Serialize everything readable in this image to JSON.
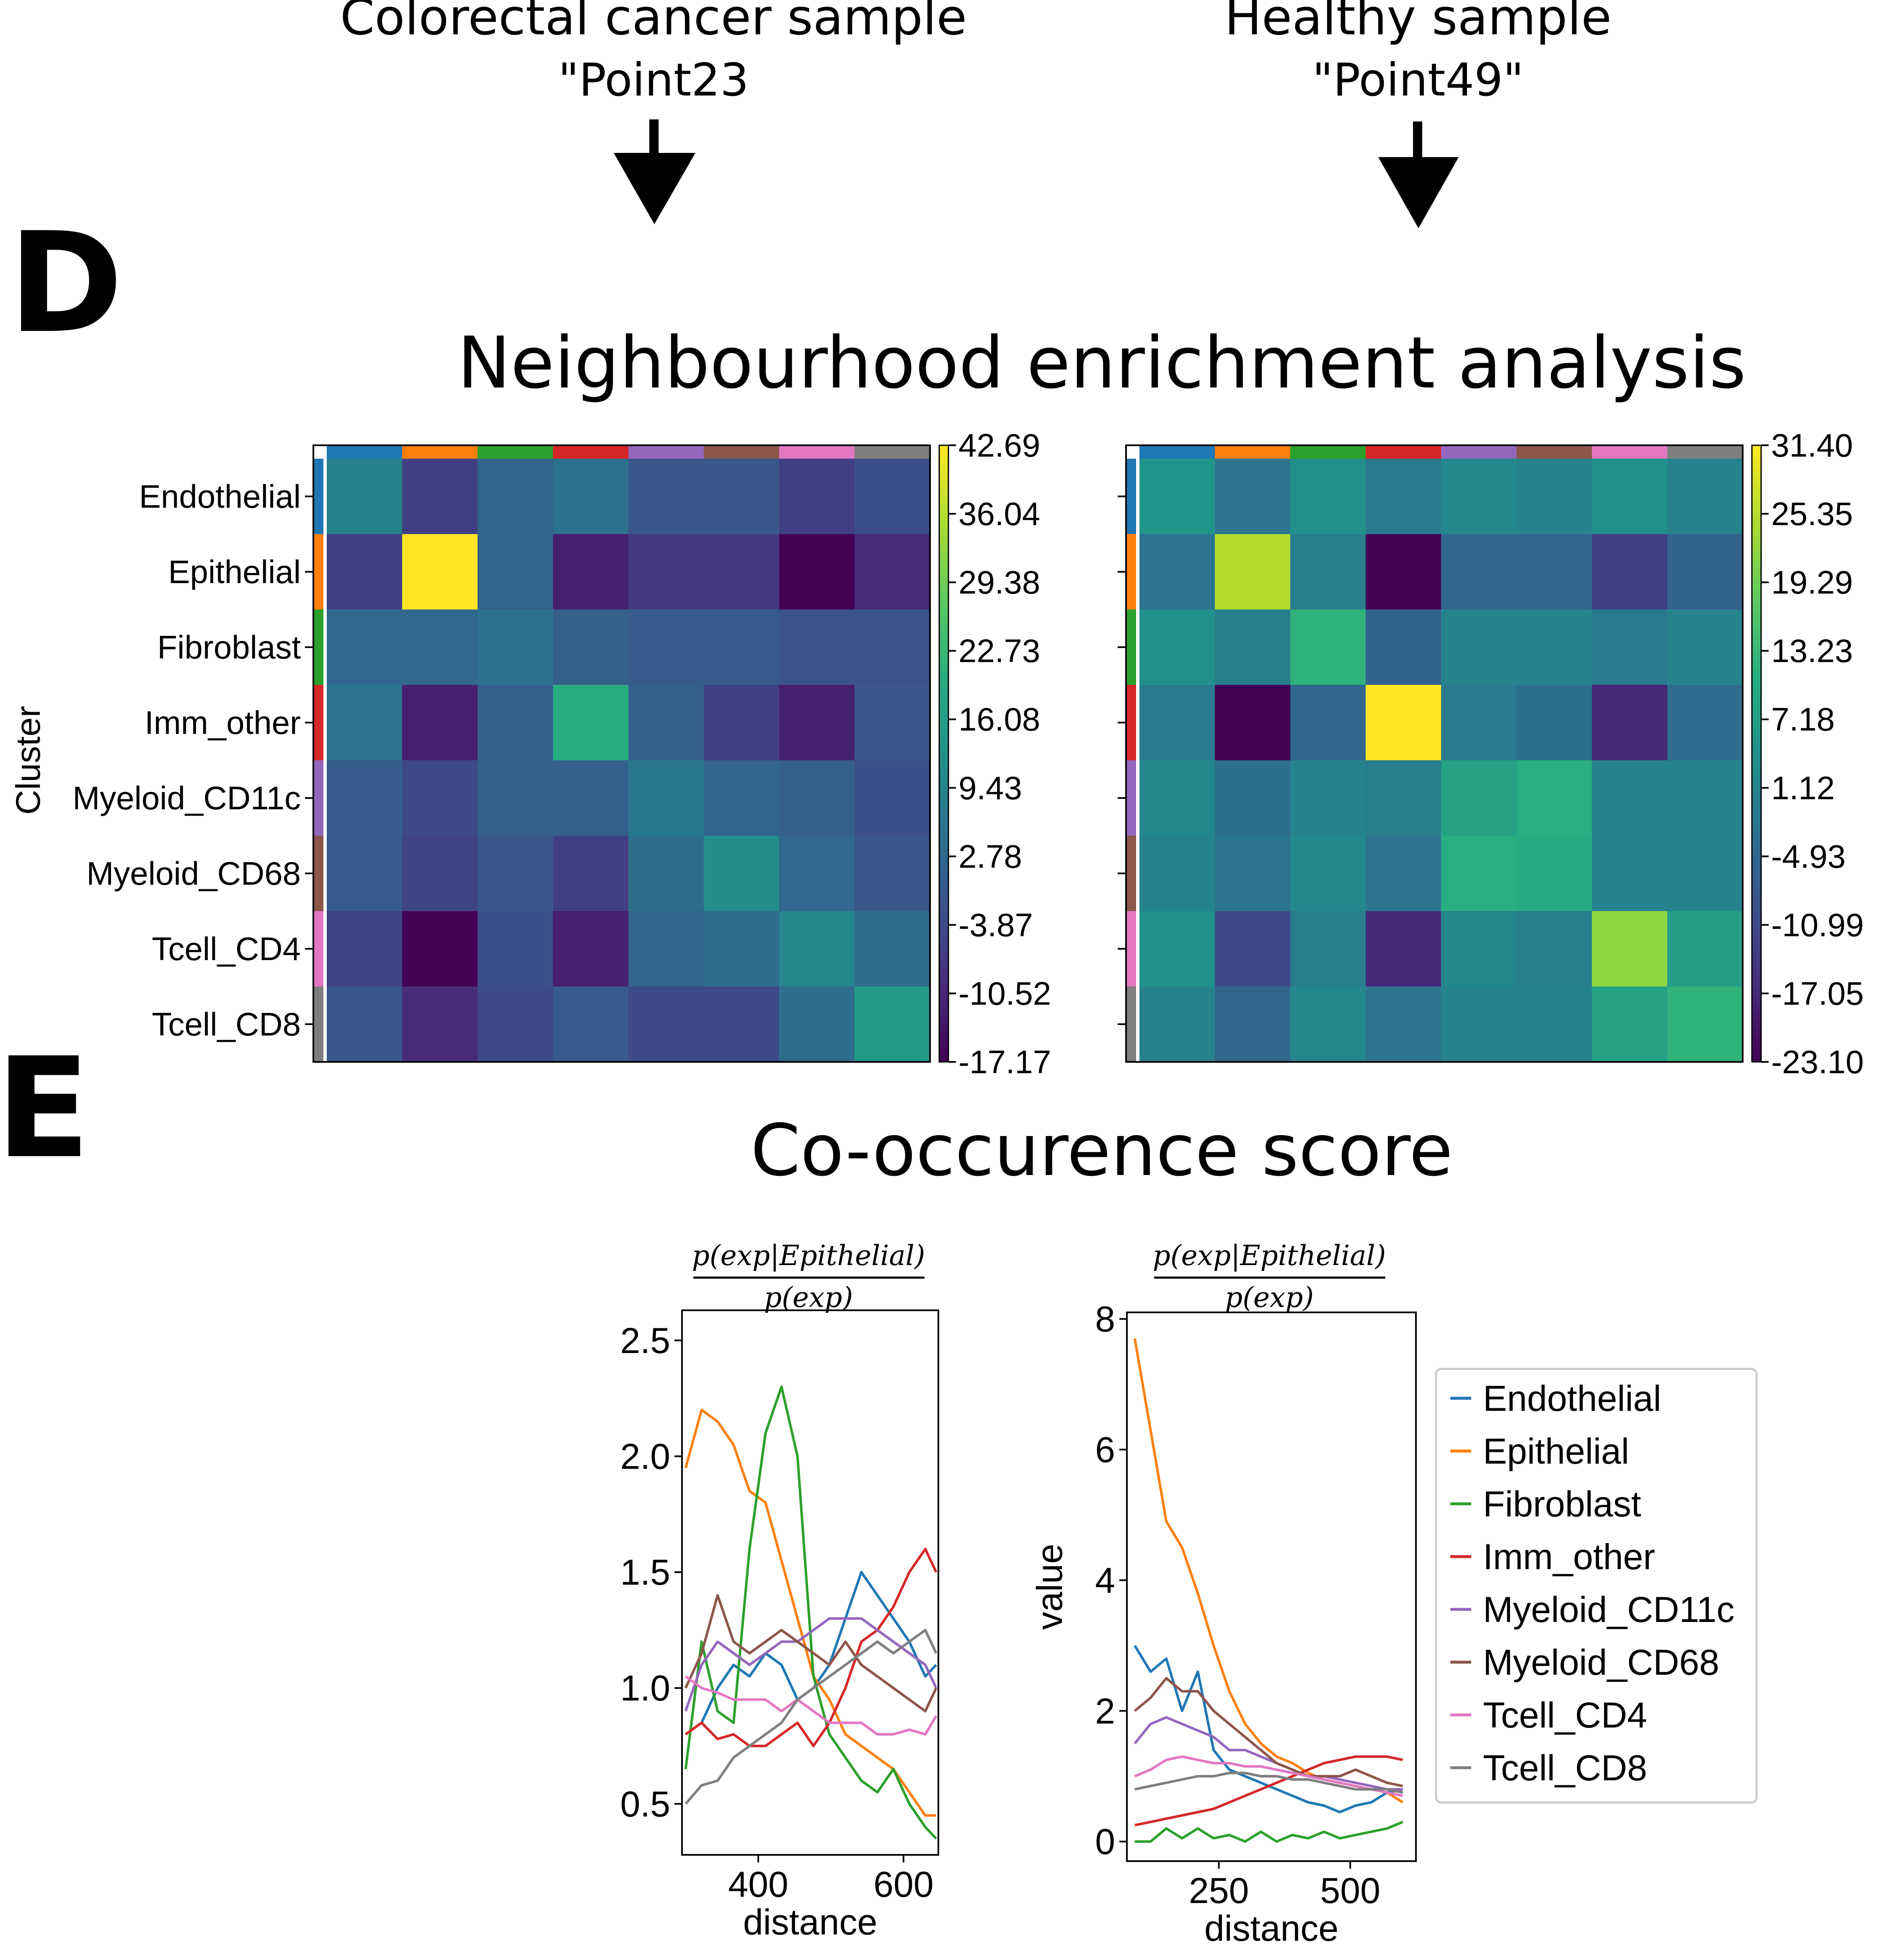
{
  "header": {
    "left_title": "Colorectal cancer sample",
    "left_subtitle": "\"Point23",
    "right_title": "Healthy sample",
    "right_subtitle": "\"Point49\""
  },
  "panel_d": {
    "letter": "D",
    "title": "Neighbourhood enrichment analysis",
    "ylabel": "Cluster"
  },
  "panel_e": {
    "letter": "E",
    "title": "Co-occurence score",
    "formula_numerator": "p(exp|Epithelial)",
    "formula_denominator": "p(exp)"
  },
  "cluster_colors": [
    "#1f77b4",
    "#ff7f0e",
    "#2ca02c",
    "#d62728",
    "#9467bd",
    "#8c564b",
    "#e377c2",
    "#7f7f7f"
  ],
  "chart_data": [
    {
      "type": "heatmap",
      "categories": [
        "Endothelial",
        "Epithelial",
        "Fibroblast",
        "Imm_other",
        "Myeloid_CD11c",
        "Myeloid_CD68",
        "Tcell_CD4",
        "Tcell_CD8"
      ],
      "ylabel": "Cluster",
      "colormap": "viridis",
      "colorbar_range": [
        -17.17,
        42.69
      ],
      "colorbar_ticks": [
        "42.69",
        "36.04",
        "29.38",
        "22.73",
        "16.08",
        "9.43",
        "2.78",
        "-3.87",
        "-10.52",
        "-17.17"
      ],
      "values": [
        [
          9,
          -6,
          2,
          5,
          -1,
          -1,
          -6,
          -3
        ],
        [
          -6,
          42.7,
          2,
          -12,
          -7,
          -7,
          -17,
          -10
        ],
        [
          3,
          3,
          5,
          1,
          0,
          0,
          -2,
          -2
        ],
        [
          6,
          -12,
          1,
          20,
          1,
          -6,
          -12,
          -1
        ],
        [
          0,
          -4,
          1,
          1,
          7,
          2,
          1,
          -3
        ],
        [
          0,
          -5,
          -1,
          -6,
          4,
          12,
          3,
          -1
        ],
        [
          -5,
          -17,
          -3,
          -12,
          2,
          4,
          10,
          4
        ],
        [
          -1,
          -10,
          -4,
          0,
          -4,
          -4,
          4,
          15
        ]
      ]
    },
    {
      "type": "heatmap",
      "categories": [
        "Endothelial",
        "Epithelial",
        "Fibroblast",
        "Imm_other",
        "Myeloid_CD11c",
        "Myeloid_CD68",
        "Tcell_CD4",
        "Tcell_CD8"
      ],
      "colormap": "viridis",
      "colorbar_range": [
        -23.1,
        31.4
      ],
      "colorbar_ticks": [
        "31.40",
        "25.35",
        "19.29",
        "13.23",
        "7.18",
        "1.12",
        "-4.93",
        "-10.99",
        "-17.05",
        "-23.10"
      ],
      "values": [
        [
          5,
          -2,
          4,
          -1,
          2,
          1,
          4,
          1
        ],
        [
          -2,
          25,
          0,
          -23,
          -5,
          -5,
          -13,
          -6
        ],
        [
          4,
          0,
          12,
          -6,
          1,
          1,
          -1,
          1
        ],
        [
          -1,
          -23,
          -5,
          31.4,
          -1,
          -3,
          -17,
          -4
        ],
        [
          2,
          -3,
          1,
          0,
          8,
          11,
          1,
          1
        ],
        [
          1,
          -2,
          2,
          -2,
          11,
          10,
          1,
          1
        ],
        [
          4,
          -11,
          0,
          -17,
          2,
          0,
          22,
          7
        ],
        [
          1,
          -5,
          2,
          -2,
          1,
          1,
          8,
          12
        ]
      ]
    },
    {
      "type": "line",
      "xlabel": "distance",
      "ylabel": "",
      "xlim": [
        295,
        648
      ],
      "ylim": [
        0.28,
        2.63
      ],
      "xticks": [
        400,
        600
      ],
      "yticks": [
        0.5,
        1.0,
        1.5,
        2.0,
        2.5
      ],
      "x": [
        300,
        322,
        344,
        366,
        388,
        410,
        432,
        454,
        476,
        498,
        520,
        542,
        564,
        586,
        608,
        630,
        645
      ],
      "series": [
        {
          "name": "Endothelial",
          "values": [
            0.8,
            0.85,
            1.0,
            1.1,
            1.05,
            1.15,
            1.1,
            0.95,
            1.0,
            1.1,
            1.3,
            1.5,
            1.4,
            1.3,
            1.2,
            1.05,
            1.1
          ]
        },
        {
          "name": "Epithelial",
          "values": [
            1.95,
            2.2,
            2.15,
            2.05,
            1.85,
            1.8,
            1.55,
            1.3,
            1.05,
            0.95,
            0.8,
            0.75,
            0.7,
            0.65,
            0.55,
            0.45,
            0.45
          ]
        },
        {
          "name": "Fibroblast",
          "values": [
            0.65,
            1.2,
            0.9,
            0.85,
            1.6,
            2.1,
            2.3,
            2.0,
            1.05,
            0.8,
            0.7,
            0.6,
            0.55,
            0.65,
            0.5,
            0.4,
            0.35
          ]
        },
        {
          "name": "Imm_other",
          "values": [
            0.8,
            0.85,
            0.78,
            0.8,
            0.75,
            0.75,
            0.8,
            0.85,
            0.75,
            0.85,
            1.0,
            1.2,
            1.25,
            1.35,
            1.5,
            1.6,
            1.5
          ]
        },
        {
          "name": "Myeloid_CD11c",
          "values": [
            0.9,
            1.1,
            1.2,
            1.15,
            1.1,
            1.15,
            1.2,
            1.2,
            1.25,
            1.3,
            1.3,
            1.3,
            1.25,
            1.2,
            1.15,
            1.1,
            1.0
          ]
        },
        {
          "name": "Myeloid_CD68",
          "values": [
            1.0,
            1.15,
            1.4,
            1.2,
            1.15,
            1.2,
            1.25,
            1.2,
            1.15,
            1.1,
            1.2,
            1.1,
            1.05,
            1.0,
            0.95,
            0.9,
            1.0
          ]
        },
        {
          "name": "Tcell_CD4",
          "values": [
            1.05,
            1.0,
            0.98,
            0.95,
            0.95,
            0.95,
            0.9,
            0.95,
            0.9,
            0.85,
            0.85,
            0.85,
            0.8,
            0.8,
            0.82,
            0.8,
            0.88
          ]
        },
        {
          "name": "Tcell_CD8",
          "values": [
            0.5,
            0.58,
            0.6,
            0.7,
            0.75,
            0.8,
            0.85,
            0.95,
            1.0,
            1.05,
            1.1,
            1.15,
            1.2,
            1.15,
            1.2,
            1.25,
            1.15
          ]
        }
      ]
    },
    {
      "type": "line",
      "xlabel": "distance",
      "ylabel": "value",
      "xlim": [
        75,
        625
      ],
      "ylim": [
        -0.3,
        8.1
      ],
      "xticks": [
        250,
        500
      ],
      "yticks": [
        0,
        2,
        4,
        6,
        8
      ],
      "x": [
        90,
        120,
        150,
        180,
        210,
        240,
        270,
        300,
        330,
        360,
        390,
        420,
        450,
        480,
        510,
        540,
        570,
        600
      ],
      "series": [
        {
          "name": "Endothelial",
          "values": [
            3.0,
            2.6,
            2.8,
            2.0,
            2.6,
            1.4,
            1.1,
            1.0,
            0.9,
            0.8,
            0.7,
            0.6,
            0.55,
            0.45,
            0.55,
            0.6,
            0.75,
            0.8
          ]
        },
        {
          "name": "Epithelial",
          "values": [
            7.7,
            6.3,
            4.9,
            4.5,
            3.8,
            3.0,
            2.3,
            1.8,
            1.5,
            1.3,
            1.2,
            1.05,
            0.95,
            0.9,
            0.85,
            0.8,
            0.75,
            0.6
          ]
        },
        {
          "name": "Fibroblast",
          "values": [
            0.0,
            0.0,
            0.2,
            0.05,
            0.2,
            0.05,
            0.1,
            0.0,
            0.15,
            0.0,
            0.1,
            0.05,
            0.15,
            0.05,
            0.1,
            0.15,
            0.2,
            0.3
          ]
        },
        {
          "name": "Imm_other",
          "values": [
            0.25,
            0.3,
            0.35,
            0.4,
            0.45,
            0.5,
            0.6,
            0.7,
            0.8,
            0.9,
            1.0,
            1.1,
            1.2,
            1.25,
            1.3,
            1.3,
            1.3,
            1.25
          ]
        },
        {
          "name": "Myeloid_CD11c",
          "values": [
            1.5,
            1.8,
            1.9,
            1.8,
            1.7,
            1.6,
            1.4,
            1.4,
            1.3,
            1.2,
            1.1,
            1.0,
            1.0,
            0.95,
            0.9,
            0.85,
            0.8,
            0.8
          ]
        },
        {
          "name": "Myeloid_CD68",
          "values": [
            2.0,
            2.2,
            2.5,
            2.3,
            2.3,
            2.0,
            1.8,
            1.6,
            1.4,
            1.2,
            1.1,
            1.0,
            1.0,
            1.0,
            1.1,
            1.0,
            0.9,
            0.85
          ]
        },
        {
          "name": "Tcell_CD4",
          "values": [
            1.0,
            1.1,
            1.25,
            1.3,
            1.25,
            1.2,
            1.2,
            1.15,
            1.15,
            1.1,
            1.05,
            1.0,
            0.95,
            0.9,
            0.85,
            0.8,
            0.75,
            0.7
          ]
        },
        {
          "name": "Tcell_CD8",
          "values": [
            0.8,
            0.85,
            0.9,
            0.95,
            1.0,
            1.0,
            1.05,
            1.05,
            1.0,
            1.0,
            0.95,
            0.95,
            0.9,
            0.85,
            0.8,
            0.8,
            0.8,
            0.75
          ]
        }
      ],
      "legend": "right"
    }
  ]
}
